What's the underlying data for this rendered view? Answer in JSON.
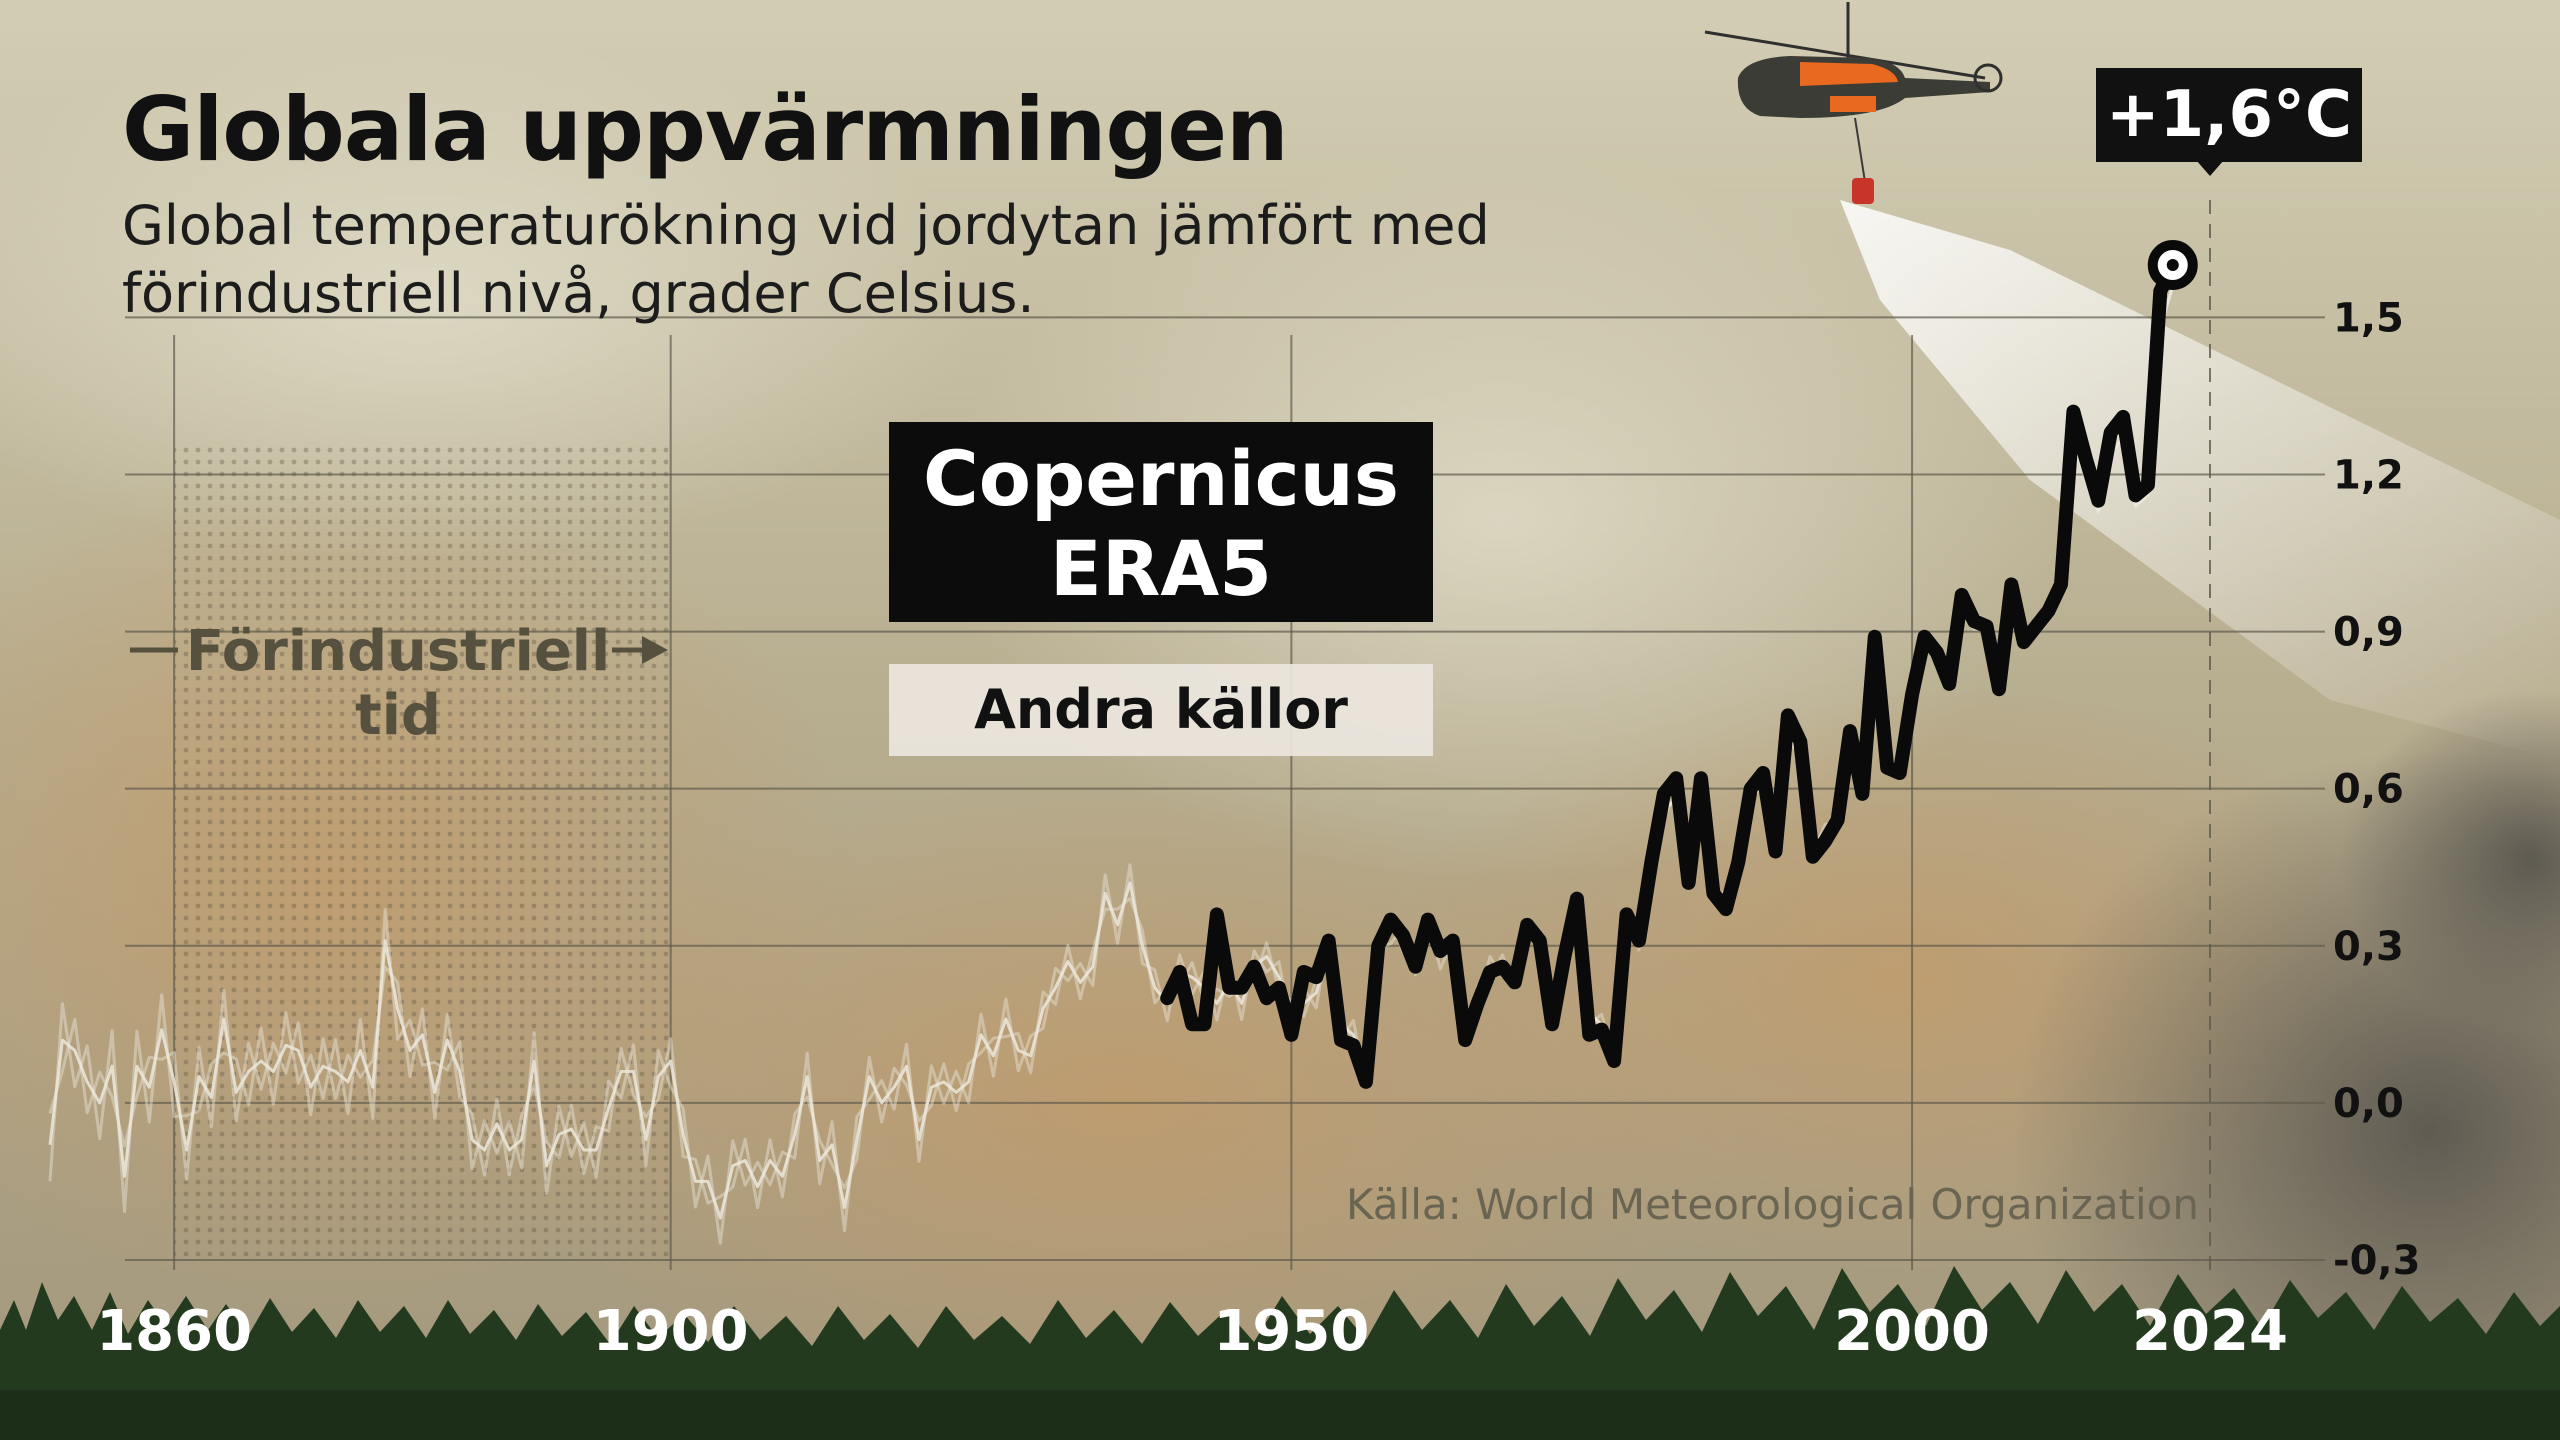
{
  "title": "Globala uppvärmningen",
  "subtitle": "Global temperaturökning vid jordytan jämfört med förindustriell nivå, grader Celsius.",
  "callout": "+1,6°C",
  "legend": {
    "primary": "Copernicus ERA5",
    "secondary": "Andra källor"
  },
  "period_label": "Förindustriell tid",
  "source": "Källa: World Meteorological Organization",
  "colors": {
    "primary_series": "#0a0a0a",
    "secondary_series": "#ece7dc",
    "grid": "#5e5a4c",
    "period_shade": "#5a513c"
  },
  "chart_data": {
    "type": "line",
    "xlim": [
      1850,
      2024
    ],
    "ylim": [
      -0.3,
      1.6
    ],
    "x_ticks": [
      1860,
      1900,
      1950,
      2000,
      2024
    ],
    "x_tick_labels": [
      "1860",
      "1900",
      "1950",
      "2000",
      "2024"
    ],
    "y_ticks": [
      -0.3,
      0.0,
      0.3,
      0.6,
      0.9,
      1.2,
      1.5
    ],
    "y_tick_labels": [
      "-0,3",
      "0,0",
      "0,3",
      "0,6",
      "0,9",
      "1,2",
      "1,5"
    ],
    "grid": true,
    "shaded_range": [
      1860,
      1900
    ],
    "series": [
      {
        "name": "Copernicus ERA5",
        "x_start": 1940,
        "values": [
          0.2,
          0.25,
          0.15,
          0.15,
          0.36,
          0.22,
          0.22,
          0.26,
          0.2,
          0.22,
          0.13,
          0.25,
          0.24,
          0.31,
          0.12,
          0.11,
          0.04,
          0.3,
          0.35,
          0.32,
          0.26,
          0.35,
          0.29,
          0.31,
          0.12,
          0.19,
          0.25,
          0.26,
          0.23,
          0.34,
          0.31,
          0.15,
          0.28,
          0.39,
          0.13,
          0.14,
          0.08,
          0.36,
          0.31,
          0.46,
          0.59,
          0.62,
          0.42,
          0.62,
          0.4,
          0.37,
          0.46,
          0.6,
          0.63,
          0.48,
          0.74,
          0.69,
          0.47,
          0.5,
          0.54,
          0.71,
          0.59,
          0.89,
          0.64,
          0.63,
          0.78,
          0.89,
          0.86,
          0.8,
          0.97,
          0.92,
          0.91,
          0.79,
          0.99,
          0.88,
          0.91,
          0.94,
          0.99,
          1.32,
          1.23,
          1.15,
          1.28,
          1.31,
          1.16,
          1.18,
          1.55,
          1.6
        ]
      },
      {
        "name": "Andra källor",
        "x_start": 1850,
        "values": [
          -0.08,
          0.12,
          0.1,
          0.04,
          0.0,
          0.07,
          -0.14,
          0.07,
          0.03,
          0.14,
          0.04,
          -0.09,
          0.05,
          0.01,
          0.16,
          0.02,
          0.06,
          0.08,
          0.06,
          0.11,
          0.1,
          0.03,
          0.07,
          0.06,
          0.04,
          0.1,
          0.03,
          0.31,
          0.18,
          0.1,
          0.13,
          0.02,
          0.12,
          0.06,
          -0.07,
          -0.09,
          -0.04,
          -0.09,
          -0.07,
          0.08,
          -0.12,
          -0.06,
          -0.05,
          -0.09,
          -0.09,
          -0.01,
          0.06,
          0.06,
          -0.07,
          0.05,
          0.08,
          -0.06,
          -0.15,
          -0.15,
          -0.22,
          -0.12,
          -0.11,
          -0.16,
          -0.11,
          -0.14,
          -0.06,
          0.05,
          -0.11,
          -0.08,
          -0.2,
          -0.07,
          0.05,
          0.0,
          0.03,
          0.07,
          -0.07,
          0.03,
          0.04,
          0.02,
          0.04,
          0.13,
          0.09,
          0.16,
          0.1,
          0.09,
          0.18,
          0.22,
          0.27,
          0.23,
          0.26,
          0.4,
          0.34,
          0.42,
          0.3,
          0.22,
          0.19,
          0.25,
          0.24,
          0.22,
          0.19,
          0.23,
          0.19,
          0.26,
          0.28,
          0.24,
          0.17,
          0.19,
          0.21,
          0.29,
          0.15,
          0.13,
          0.06,
          0.27,
          0.33,
          0.31,
          0.27,
          0.33,
          0.28,
          0.29,
          0.14,
          0.2,
          0.26,
          0.26,
          0.24,
          0.33,
          0.3,
          0.17,
          0.27,
          0.38,
          0.17,
          0.15,
          0.1,
          0.34,
          0.31,
          0.44,
          0.56,
          0.58,
          0.43,
          0.58,
          0.41,
          0.39,
          0.47,
          0.58,
          0.61,
          0.49,
          0.7,
          0.66,
          0.49,
          0.52,
          0.55,
          0.69,
          0.6,
          0.85,
          0.65,
          0.64,
          0.77,
          0.87,
          0.85,
          0.8,
          0.95,
          0.91,
          0.9,
          0.8,
          0.97,
          0.89,
          0.91,
          0.94,
          0.98,
          1.27,
          1.19,
          1.13,
          1.24,
          1.27,
          1.14,
          1.16,
          1.48,
          1.56
        ]
      }
    ]
  }
}
